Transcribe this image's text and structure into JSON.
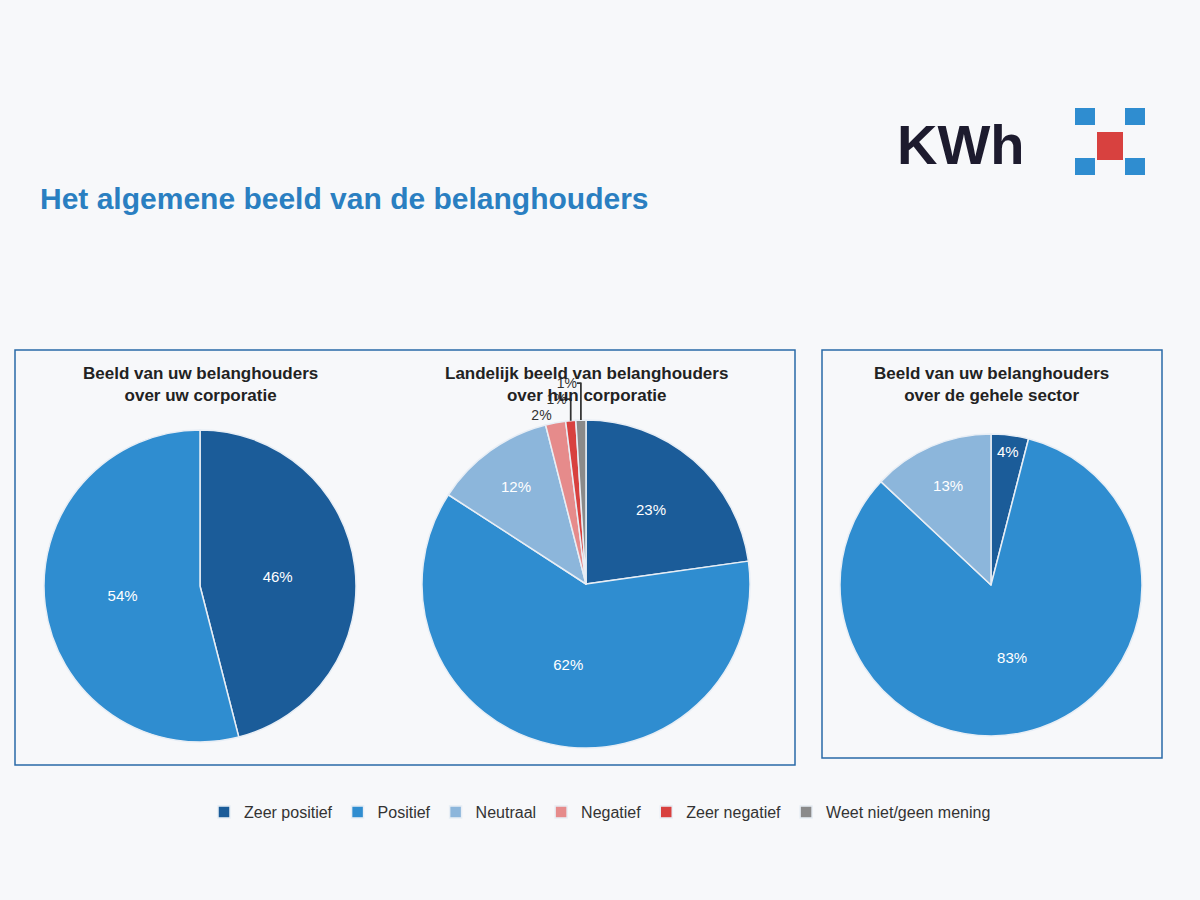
{
  "title": "Het algemene beeld van de belanghouders",
  "logo": "KWh",
  "chart_data": [
    {
      "type": "pie",
      "title": "Beeld van uw belanghouders over uw corporatie",
      "categories": [
        "Zeer positief",
        "Positief"
      ],
      "values": [
        46,
        54
      ],
      "value_labels": [
        "46%",
        "54%"
      ],
      "colors": [
        "#1b5c99",
        "#2f8dd0"
      ],
      "data_labels": true,
      "legend": "bottom"
    },
    {
      "type": "pie",
      "title": "Landelijk beeld van belanghouders over hun corporatie",
      "categories": [
        "Zeer positief",
        "Positief",
        "Neutraal",
        "Negatief",
        "Zeer negatief",
        "Weet niet/geen mening"
      ],
      "values": [
        23,
        62,
        12,
        2,
        1,
        1
      ],
      "value_labels": [
        "23%",
        "62%",
        "12%",
        "2%",
        "1%",
        "1%"
      ],
      "colors": [
        "#1b5c99",
        "#2f8dd0",
        "#8cb6db",
        "#e68b8b",
        "#d8413f",
        "#8a8a8a"
      ],
      "data_labels": true,
      "legend": "bottom"
    },
    {
      "type": "pie",
      "title": "Beeld van uw belanghouders over de gehele sector",
      "categories": [
        "Zeer positief",
        "Positief",
        "Neutraal"
      ],
      "values": [
        4,
        83,
        13
      ],
      "value_labels": [
        "4%",
        "83%",
        "13%"
      ],
      "colors": [
        "#1b5c99",
        "#2f8dd0",
        "#8cb6db"
      ],
      "data_labels": true,
      "legend": "bottom"
    }
  ]
}
